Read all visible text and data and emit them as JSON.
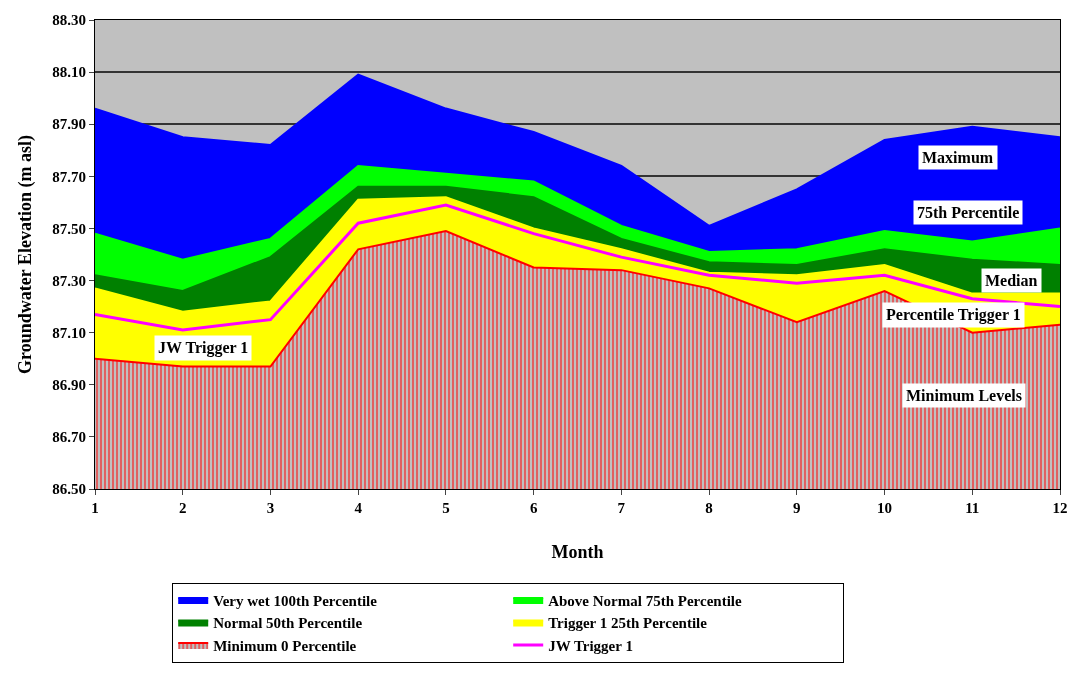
{
  "chart_data": {
    "type": "area",
    "xlabel": "Month",
    "ylabel": "Groundwater Elevation (m asl)",
    "x": [
      1,
      2,
      3,
      4,
      5,
      6,
      7,
      8,
      9,
      10,
      11,
      12
    ],
    "xlim": [
      1,
      12
    ],
    "xticks": [
      1,
      2,
      3,
      4,
      5,
      6,
      7,
      8,
      9,
      10,
      11,
      12
    ],
    "ylim": [
      86.5,
      88.3
    ],
    "yticks": [
      {
        "value": 86.5,
        "label": "86.50"
      },
      {
        "value": 86.7,
        "label": "86.70"
      },
      {
        "value": 86.9,
        "label": "86.90"
      },
      {
        "value": 87.1,
        "label": "87.10"
      },
      {
        "value": 87.3,
        "label": "87.30"
      },
      {
        "value": 87.5,
        "label": "87.50"
      },
      {
        "value": 87.7,
        "label": "87.70"
      },
      {
        "value": 87.9,
        "label": "87.90"
      },
      {
        "value": 88.1,
        "label": "88.10"
      },
      {
        "value": 88.3,
        "label": "88.30"
      }
    ],
    "grid": "y",
    "legend": "bottom",
    "series": [
      {
        "name": "Very wet 100th Percentile",
        "color": "#0000ff",
        "values": [
          87.96,
          87.85,
          87.82,
          88.09,
          87.96,
          87.87,
          87.74,
          87.51,
          87.65,
          87.84,
          87.89,
          87.85
        ]
      },
      {
        "name": "Above Normal 75th Percentile",
        "color": "#00ff00",
        "values": [
          87.48,
          87.38,
          87.46,
          87.74,
          87.71,
          87.68,
          87.51,
          87.41,
          87.42,
          87.49,
          87.45,
          87.5
        ]
      },
      {
        "name": "Normal 50th Percentile",
        "color": "#008000",
        "values": [
          87.32,
          87.26,
          87.39,
          87.66,
          87.66,
          87.62,
          87.46,
          87.37,
          87.36,
          87.42,
          87.38,
          87.36
        ]
      },
      {
        "name": "Trigger 1 25th Percentile",
        "color": "#ffff00",
        "values": [
          87.27,
          87.18,
          87.22,
          87.61,
          87.62,
          87.5,
          87.42,
          87.33,
          87.32,
          87.36,
          87.25,
          87.25
        ]
      },
      {
        "name": "Minimum 0 Percentile",
        "color": "#ff0000",
        "values": [
          87.0,
          86.97,
          86.97,
          87.42,
          87.49,
          87.35,
          87.34,
          87.27,
          87.14,
          87.26,
          87.1,
          87.13
        ]
      },
      {
        "name": "JW Trigger 1",
        "color": "#ff00ff",
        "type": "line",
        "values": [
          87.17,
          87.11,
          87.15,
          87.52,
          87.59,
          87.48,
          87.39,
          87.32,
          87.29,
          87.32,
          87.23,
          87.2
        ]
      }
    ],
    "annotations": [
      "Maximum",
      "75th Percentile",
      "Median",
      "Percentile Trigger 1",
      "Minimum Levels",
      "JW Trigger 1"
    ]
  }
}
